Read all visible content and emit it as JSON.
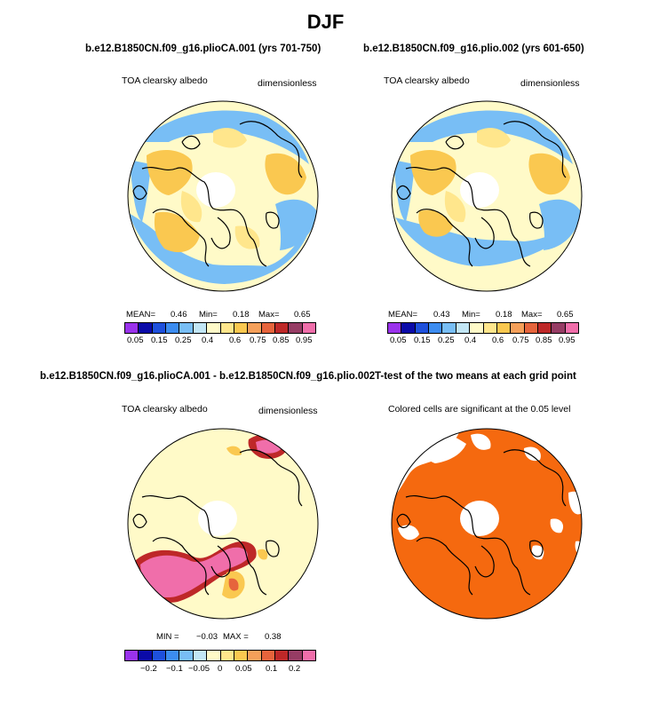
{
  "title": "DJF",
  "panels": [
    {
      "id": "p1",
      "case_title": "b.e12.B1850CN.f09_g16.plioCA.001 (yrs 701-750)",
      "left_label": "TOA clearsky albedo",
      "right_label": "dimensionless",
      "stats": {
        "mean_label": "MEAN=",
        "mean": "0.46",
        "min_label": "Min=",
        "min": "0.18",
        "max_label": "Max=",
        "max": "0.65"
      },
      "colorbar": {
        "colors": [
          "#9a32ec",
          "#0a0aa8",
          "#1e50dc",
          "#3c8cf0",
          "#78bef5",
          "#c2e6f5",
          "#fffac8",
          "#ffe68c",
          "#fac850",
          "#f5a05a",
          "#e6643c",
          "#be2828",
          "#963c64",
          "#f06eaa"
        ],
        "ticks": [
          "0.05",
          "0.15",
          "0.25",
          "0.4",
          "0.6",
          "0.75",
          "0.85",
          "0.95"
        ]
      }
    },
    {
      "id": "p2",
      "case_title": "b.e12.B1850CN.f09_g16.plio.002 (yrs 601-650)",
      "left_label": "TOA clearsky albedo",
      "right_label": "dimensionless",
      "stats": {
        "mean_label": "MEAN=",
        "mean": "0.43",
        "min_label": "Min=",
        "min": "0.18",
        "max_label": "Max=",
        "max": "0.65"
      },
      "colorbar": {
        "colors": [
          "#9a32ec",
          "#0a0aa8",
          "#1e50dc",
          "#3c8cf0",
          "#78bef5",
          "#c2e6f5",
          "#fffac8",
          "#ffe68c",
          "#fac850",
          "#f5a05a",
          "#e6643c",
          "#be2828",
          "#963c64",
          "#f06eaa"
        ],
        "ticks": [
          "0.05",
          "0.15",
          "0.25",
          "0.4",
          "0.6",
          "0.75",
          "0.85",
          "0.95"
        ]
      }
    },
    {
      "id": "p3",
      "case_title": "b.e12.B1850CN.f09_g16.plioCA.001 - b.e12.B1850CN.f09_g16.plio.002",
      "left_label": "TOA clearsky albedo",
      "right_label": "dimensionless",
      "stats": {
        "min_label": "MIN =",
        "min": "−0.03",
        "max_label": "MAX =",
        "max": "0.38"
      },
      "colorbar": {
        "colors": [
          "#9a32ec",
          "#0a0aa8",
          "#1e50dc",
          "#3c8cf0",
          "#78bef5",
          "#c2e6f5",
          "#fffac8",
          "#ffe68c",
          "#fac850",
          "#f5a05a",
          "#e6643c",
          "#be2828",
          "#963c64",
          "#f06eaa"
        ],
        "ticks": [
          "−0.2",
          "−0.1",
          "−0.05",
          "0",
          "0.05",
          "0.1",
          "0.2"
        ]
      }
    },
    {
      "id": "p4",
      "case_title": "T-test of the two means at each grid point",
      "left_label": "Colored cells are significant at the 0.05 level"
    }
  ],
  "chart_data": [
    {
      "type": "heatmap",
      "title": "b.e12.B1850CN.f09_g16.plioCA.001 (yrs 701-750)",
      "variable": "TOA clearsky albedo",
      "units": "dimensionless",
      "season": "DJF",
      "projection": "north polar stereographic",
      "mean": 0.46,
      "min": 0.18,
      "max": 0.65,
      "levels": [
        0.05,
        0.1,
        0.15,
        0.2,
        0.25,
        0.3,
        0.4,
        0.5,
        0.6,
        0.7,
        0.75,
        0.8,
        0.85,
        0.9,
        0.95
      ]
    },
    {
      "type": "heatmap",
      "title": "b.e12.B1850CN.f09_g16.plio.002 (yrs 601-650)",
      "variable": "TOA clearsky albedo",
      "units": "dimensionless",
      "season": "DJF",
      "projection": "north polar stereographic",
      "mean": 0.43,
      "min": 0.18,
      "max": 0.65,
      "levels": [
        0.05,
        0.1,
        0.15,
        0.2,
        0.25,
        0.3,
        0.4,
        0.5,
        0.6,
        0.7,
        0.75,
        0.8,
        0.85,
        0.9,
        0.95
      ]
    },
    {
      "type": "heatmap",
      "title": "b.e12.B1850CN.f09_g16.plioCA.001 - b.e12.B1850CN.f09_g16.plio.002",
      "variable": "TOA clearsky albedo",
      "units": "dimensionless",
      "min": -0.03,
      "max": 0.38,
      "levels": [
        -0.3,
        -0.2,
        -0.15,
        -0.1,
        -0.07,
        -0.05,
        -0.03,
        0,
        0.03,
        0.05,
        0.07,
        0.1,
        0.15,
        0.2,
        0.3
      ]
    },
    {
      "type": "heatmap",
      "title": "T-test of the two means at each grid point",
      "note": "Colored cells are significant at the 0.05 level",
      "fill_color": "#f5690f"
    }
  ]
}
